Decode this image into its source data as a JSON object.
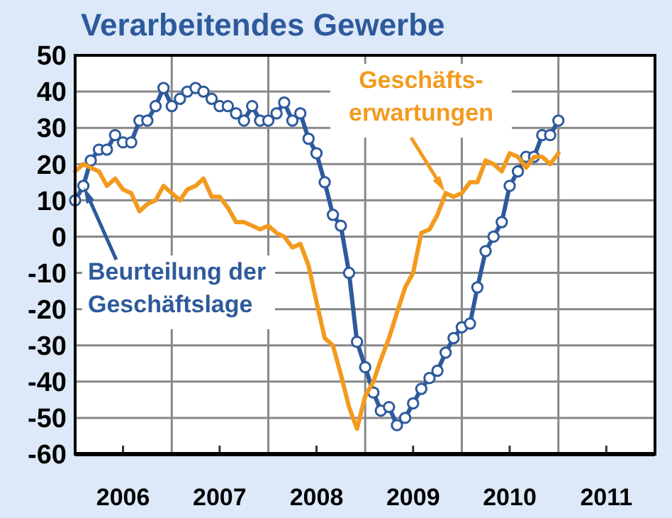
{
  "chart_data": {
    "type": "line",
    "title": "Verarbeitendes Gewerbe",
    "x": [
      "2006-01",
      "2006-02",
      "2006-03",
      "2006-04",
      "2006-05",
      "2006-06",
      "2006-07",
      "2006-08",
      "2006-09",
      "2006-10",
      "2006-11",
      "2006-12",
      "2007-01",
      "2007-02",
      "2007-03",
      "2007-04",
      "2007-05",
      "2007-06",
      "2007-07",
      "2007-08",
      "2007-09",
      "2007-10",
      "2007-11",
      "2007-12",
      "2008-01",
      "2008-02",
      "2008-03",
      "2008-04",
      "2008-05",
      "2008-06",
      "2008-07",
      "2008-08",
      "2008-09",
      "2008-10",
      "2008-11",
      "2008-12",
      "2009-01",
      "2009-02",
      "2009-03",
      "2009-04",
      "2009-05",
      "2009-06",
      "2009-07",
      "2009-08",
      "2009-09",
      "2009-10",
      "2009-11",
      "2009-12",
      "2010-01",
      "2010-02",
      "2010-03",
      "2010-04",
      "2010-05",
      "2010-06",
      "2010-07",
      "2010-08",
      "2010-09",
      "2010-10",
      "2010-11",
      "2010-12",
      "2011-01"
    ],
    "series": [
      {
        "name": "Beurteilung der\nGeschäftslage",
        "color": "#2e5a9c",
        "marker": "circle",
        "values": [
          10,
          14,
          21,
          24,
          24,
          28,
          26,
          26,
          32,
          32,
          36,
          41,
          36,
          38,
          40,
          41,
          40,
          38,
          36,
          36,
          34,
          32,
          36,
          32,
          32,
          34,
          37,
          32,
          34,
          27,
          23,
          15,
          6,
          3,
          -10,
          -29,
          -36,
          -43,
          -48,
          -47,
          -52,
          -50,
          -46,
          -42,
          -39,
          -37,
          -32,
          -28,
          -25,
          -24,
          -14,
          -4,
          0,
          4,
          14,
          18,
          22,
          22,
          28,
          28,
          32
        ]
      },
      {
        "name": "Geschäfts-\nerwartungen",
        "color": "#f39a1e",
        "marker": "none",
        "values": [
          18,
          20,
          19,
          18,
          14,
          16,
          13,
          12,
          7,
          9,
          10,
          14,
          12,
          10,
          13,
          14,
          16,
          11,
          11,
          8,
          4,
          4,
          3,
          2,
          3,
          1,
          0,
          -3,
          -2,
          -8,
          -18,
          -28,
          -30,
          -38,
          -47,
          -53,
          -44,
          -40,
          -34,
          -28,
          -21,
          -14,
          -10,
          1,
          2,
          6,
          12,
          11,
          12,
          15,
          15,
          21,
          20,
          18,
          23,
          22,
          19,
          22,
          22,
          20,
          23
        ]
      }
    ],
    "xlim": [
      "2006-01",
      "2012-01"
    ],
    "xticks": [
      {
        "value": "2006-01",
        "label": null
      },
      {
        "value": "2006-07",
        "label": "2006"
      },
      {
        "value": "2007-01",
        "label": null
      },
      {
        "value": "2007-07",
        "label": "2007"
      },
      {
        "value": "2008-01",
        "label": null
      },
      {
        "value": "2008-07",
        "label": "2008"
      },
      {
        "value": "2009-01",
        "label": null
      },
      {
        "value": "2009-07",
        "label": "2009"
      },
      {
        "value": "2010-01",
        "label": null
      },
      {
        "value": "2010-07",
        "label": "2010"
      },
      {
        "value": "2011-01",
        "label": null
      },
      {
        "value": "2011-07",
        "label": "2011"
      },
      {
        "value": "2012-01",
        "label": null
      }
    ],
    "ylim": [
      -60,
      50
    ],
    "yticks": [
      -60,
      -50,
      -40,
      -30,
      -20,
      -10,
      0,
      10,
      20,
      30,
      40,
      50
    ],
    "grid": true,
    "line_style": "solid"
  }
}
